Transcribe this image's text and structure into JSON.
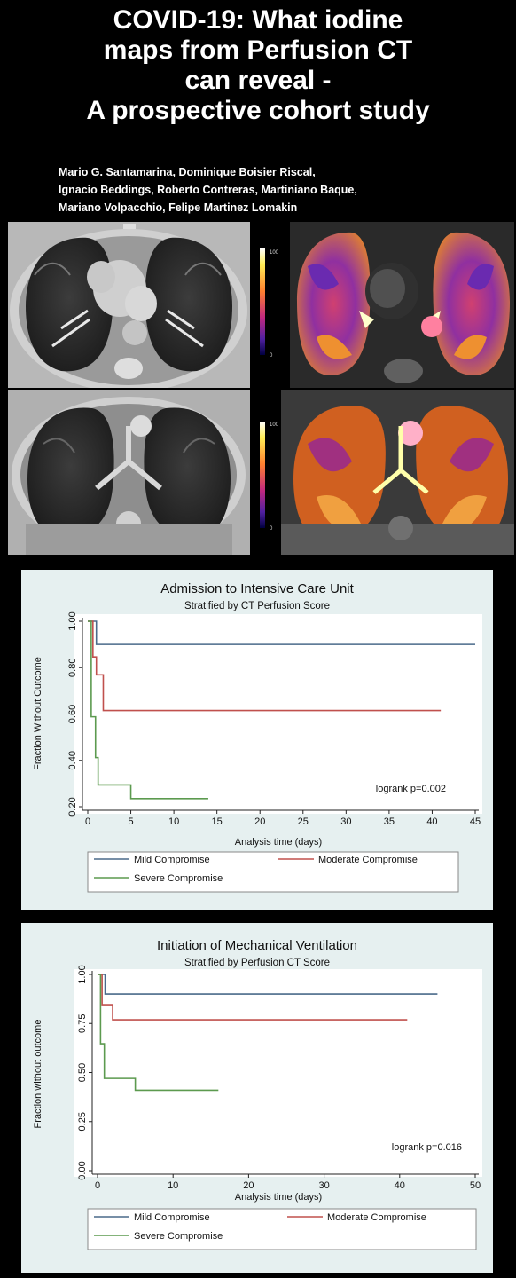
{
  "title_lines": [
    "COVID-19: What iodine",
    "maps from Perfusion CT",
    "can reveal -",
    "A prospective cohort study"
  ],
  "authors_lines": [
    "Mario G. Santamarina, Dominique Boisier Riscal,",
    "Ignacio Beddings, Roberto Contreras, Martiniano Baque,",
    "Mariano Volpacchio, Felipe Martinez Lomakin"
  ],
  "images": {
    "scale_top": "100",
    "scale_bottom": "0"
  },
  "colors": {
    "mild": "#4a6a8a",
    "moderate": "#c0504d",
    "severe": "#5c9a4f",
    "panel_bg": "#e6f0f0"
  },
  "chart_data": [
    {
      "type": "line",
      "step": true,
      "title": "Admission to Intensive Care Unit",
      "subtitle": "Stratified by CT Perfusion Score",
      "xlabel": "Analysis time (days)",
      "ylabel": "Fraction Without Outcome",
      "xlim": [
        0,
        45
      ],
      "ylim": [
        0.2,
        1.0
      ],
      "xticks": [
        0,
        5,
        10,
        15,
        20,
        25,
        30,
        35,
        40,
        45
      ],
      "yticks": [
        0.2,
        0.4,
        0.6,
        0.8,
        1.0
      ],
      "ytick_labels": [
        "0.20",
        "0.40",
        "0.60",
        "0.80",
        "1.00"
      ],
      "annotation": "logrank p=0.002",
      "series": [
        {
          "name": "Mild Compromise",
          "color": "#4a6a8a",
          "x": [
            0,
            1,
            45
          ],
          "y": [
            1.0,
            0.9,
            0.9
          ]
        },
        {
          "name": "Moderate Compromise",
          "color": "#c0504d",
          "x": [
            0,
            0.6,
            1.0,
            1.8,
            41
          ],
          "y": [
            1.0,
            0.846,
            0.769,
            0.615,
            0.615
          ]
        },
        {
          "name": "Severe Compromise",
          "color": "#5c9a4f",
          "x": [
            0,
            0.4,
            0.9,
            1.2,
            5,
            14
          ],
          "y": [
            1.0,
            0.588,
            0.412,
            0.294,
            0.235,
            0.235
          ]
        }
      ]
    },
    {
      "type": "line",
      "step": true,
      "title": "Initiation of Mechanical Ventilation",
      "subtitle": "Stratified by Perfusion CT Score",
      "xlabel": "Analysis time (days)",
      "ylabel": "Fraction without outcome",
      "xlim": [
        0,
        50
      ],
      "ylim": [
        0,
        1.0
      ],
      "xticks": [
        0,
        10,
        20,
        30,
        40,
        50
      ],
      "yticks": [
        0,
        0.25,
        0.5,
        0.75,
        1.0
      ],
      "ytick_labels": [
        "0.00",
        "0.25",
        "0.50",
        "0.75",
        "1.00"
      ],
      "annotation": "logrank p=0.016",
      "series": [
        {
          "name": "Mild Compromise",
          "color": "#4a6a8a",
          "x": [
            0,
            1,
            45
          ],
          "y": [
            1.0,
            0.9,
            0.9
          ]
        },
        {
          "name": "Moderate Compromise",
          "color": "#c0504d",
          "x": [
            0,
            0.6,
            2,
            41
          ],
          "y": [
            1.0,
            0.846,
            0.769,
            0.769
          ]
        },
        {
          "name": "Severe Compromise",
          "color": "#5c9a4f",
          "x": [
            0,
            0.4,
            0.9,
            5,
            16
          ],
          "y": [
            1.0,
            0.647,
            0.47,
            0.41,
            0.41
          ]
        }
      ]
    }
  ]
}
